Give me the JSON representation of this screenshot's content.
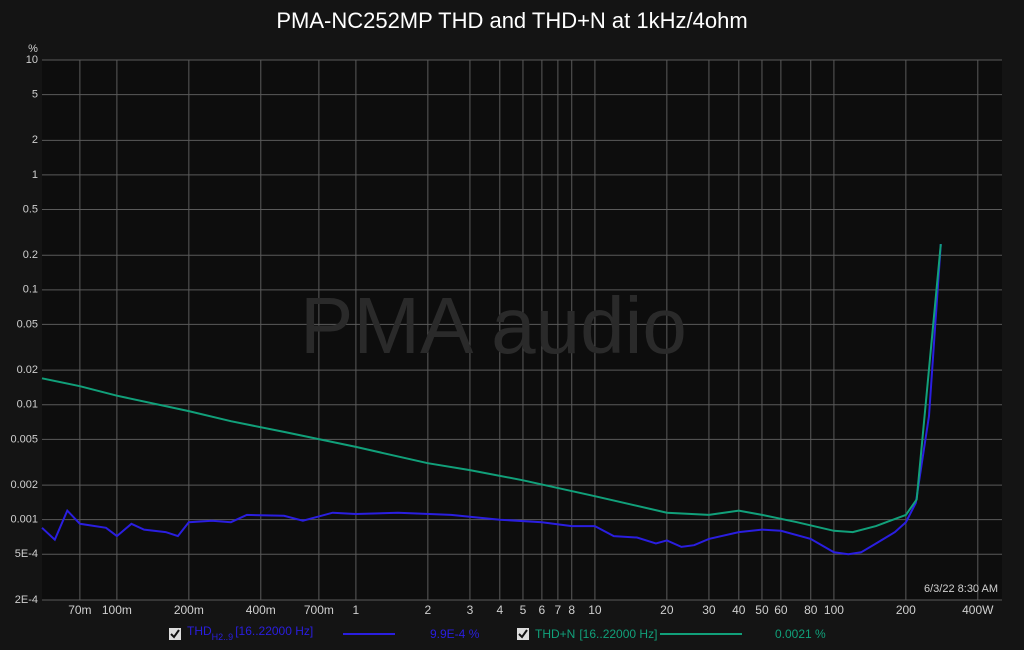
{
  "chart_data": {
    "type": "line",
    "title": "PMA-NC252MP THD and THD+N at 1kHz/4ohm",
    "y_label": "%",
    "watermark": "PMA audio",
    "timestamp": "6/3/22 8:30 AM",
    "xscale": "log",
    "yscale": "log",
    "grid": true,
    "xlim": [
      0.0486,
      505
    ],
    "ylim": [
      0.0002,
      10
    ],
    "xticks": [
      {
        "value": 0.07,
        "label": "70m"
      },
      {
        "value": 0.1,
        "label": "100m"
      },
      {
        "value": 0.2,
        "label": "200m"
      },
      {
        "value": 0.4,
        "label": "400m"
      },
      {
        "value": 0.7,
        "label": "700m"
      },
      1,
      2,
      3,
      4,
      5,
      6,
      7,
      8,
      10,
      20,
      30,
      40,
      50,
      60,
      80,
      100,
      200,
      {
        "value": 400,
        "label": "400W"
      }
    ],
    "yticks": [
      10,
      5,
      2,
      1,
      0.5,
      0.2,
      0.1,
      0.05,
      0.02,
      0.01,
      0.005,
      0.002,
      0.001,
      {
        "value": 0.0005,
        "label": "5E-4"
      },
      {
        "value": 0.0002,
        "label": "2E-4"
      }
    ],
    "series": [
      {
        "name": "THD",
        "subscript": "H2..9",
        "range": "[16..22000 Hz]",
        "current": "9.9E-4 %",
        "color": "#2a1ee0",
        "x": [
          0.0486,
          0.055,
          0.062,
          0.07,
          0.09,
          0.1,
          0.115,
          0.13,
          0.16,
          0.18,
          0.2,
          0.25,
          0.3,
          0.35,
          0.5,
          0.6,
          0.8,
          1,
          1.5,
          2.5,
          4,
          6,
          8,
          10,
          12,
          15,
          18,
          20,
          23,
          26,
          30,
          40,
          50,
          60,
          80,
          100,
          115,
          130,
          150,
          180,
          200,
          220,
          250,
          280
        ],
        "values": [
          0.00085,
          0.00067,
          0.0012,
          0.00092,
          0.00085,
          0.00072,
          0.00092,
          0.00082,
          0.00078,
          0.00072,
          0.00095,
          0.00098,
          0.00095,
          0.0011,
          0.00108,
          0.00098,
          0.00115,
          0.00112,
          0.00115,
          0.0011,
          0.001,
          0.00095,
          0.00088,
          0.00088,
          0.00072,
          0.0007,
          0.00062,
          0.00066,
          0.00058,
          0.0006,
          0.00068,
          0.00078,
          0.00082,
          0.0008,
          0.00068,
          0.00052,
          0.0005,
          0.00052,
          0.00062,
          0.00078,
          0.00095,
          0.0014,
          0.008,
          0.25
        ]
      },
      {
        "name": "THD+N",
        "range": "[16..22000 Hz]",
        "current": "0.0021 %",
        "color": "#11a07a",
        "x": [
          0.0486,
          0.07,
          0.1,
          0.2,
          0.3,
          0.5,
          1,
          2,
          3,
          5,
          10,
          20,
          30,
          40,
          50,
          70,
          100,
          120,
          150,
          200,
          222,
          280
        ],
        "values": [
          0.017,
          0.0145,
          0.012,
          0.0088,
          0.0072,
          0.0058,
          0.0043,
          0.0031,
          0.0027,
          0.0022,
          0.0016,
          0.00115,
          0.0011,
          0.0012,
          0.0011,
          0.00095,
          0.0008,
          0.00078,
          0.00088,
          0.0011,
          0.0015,
          0.25
        ]
      }
    ]
  }
}
